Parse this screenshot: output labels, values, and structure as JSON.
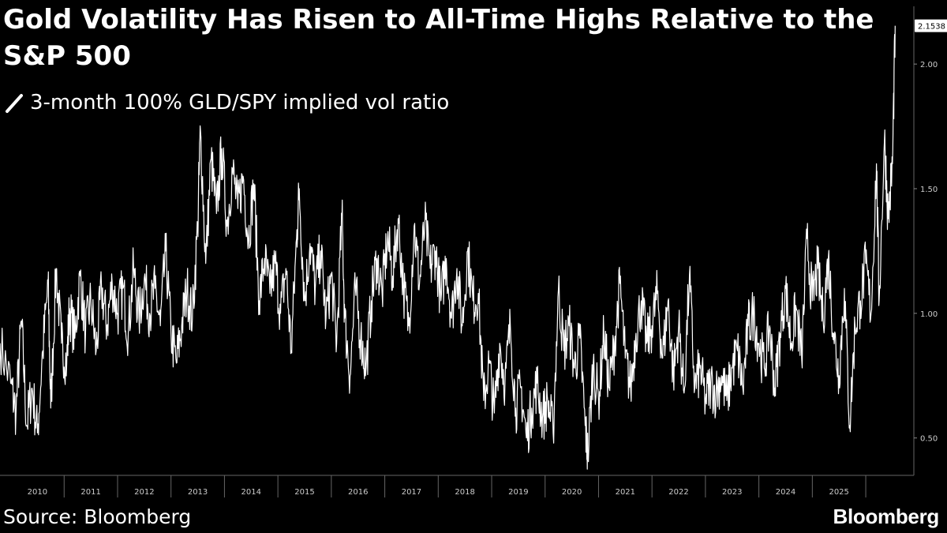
{
  "chart_data": {
    "type": "line",
    "title": "Gold Volatility Has Risen to All-Time Highs Relative to the S&P 500",
    "series": [
      {
        "name": "3-month 100% GLD/SPY implied vol ratio",
        "color": "#ffffff",
        "points": [
          [
            2009.8,
            0.88
          ],
          [
            2010.0,
            0.72
          ],
          [
            2010.1,
            0.6
          ],
          [
            2010.2,
            0.97
          ],
          [
            2010.3,
            0.55
          ],
          [
            2010.4,
            0.7
          ],
          [
            2010.5,
            0.52
          ],
          [
            2010.6,
            0.85
          ],
          [
            2010.7,
            1.12
          ],
          [
            2010.75,
            0.62
          ],
          [
            2010.85,
            1.18
          ],
          [
            2010.95,
            0.88
          ],
          [
            2011.05,
            0.8
          ],
          [
            2011.1,
            1.02
          ],
          [
            2011.2,
            0.9
          ],
          [
            2011.3,
            1.15
          ],
          [
            2011.4,
            0.92
          ],
          [
            2011.5,
            1.05
          ],
          [
            2011.6,
            0.85
          ],
          [
            2011.7,
            1.1
          ],
          [
            2011.8,
            0.95
          ],
          [
            2011.9,
            1.12
          ],
          [
            2012.0,
            1.0
          ],
          [
            2012.1,
            1.1
          ],
          [
            2012.2,
            0.92
          ],
          [
            2012.3,
            1.18
          ],
          [
            2012.4,
            0.98
          ],
          [
            2012.5,
            1.14
          ],
          [
            2012.6,
            1.0
          ],
          [
            2012.7,
            1.1
          ],
          [
            2012.8,
            0.95
          ],
          [
            2012.9,
            1.25
          ],
          [
            2013.0,
            0.92
          ],
          [
            2013.1,
            0.8
          ],
          [
            2013.2,
            0.95
          ],
          [
            2013.3,
            1.1
          ],
          [
            2013.4,
            0.98
          ],
          [
            2013.5,
            1.35
          ],
          [
            2013.55,
            1.74
          ],
          [
            2013.65,
            1.2
          ],
          [
            2013.75,
            1.62
          ],
          [
            2013.85,
            1.4
          ],
          [
            2013.95,
            1.66
          ],
          [
            2014.05,
            1.35
          ],
          [
            2014.15,
            1.58
          ],
          [
            2014.25,
            1.42
          ],
          [
            2014.35,
            1.55
          ],
          [
            2014.45,
            1.3
          ],
          [
            2014.55,
            1.52
          ],
          [
            2014.65,
            1.05
          ],
          [
            2014.75,
            1.22
          ],
          [
            2014.85,
            1.08
          ],
          [
            2014.95,
            1.2
          ],
          [
            2015.05,
            1.0
          ],
          [
            2015.15,
            1.18
          ],
          [
            2015.25,
            0.85
          ],
          [
            2015.35,
            1.3
          ],
          [
            2015.4,
            1.5
          ],
          [
            2015.5,
            1.05
          ],
          [
            2015.6,
            1.28
          ],
          [
            2015.7,
            1.1
          ],
          [
            2015.8,
            1.25
          ],
          [
            2015.9,
            0.98
          ],
          [
            2016.0,
            1.15
          ],
          [
            2016.1,
            0.88
          ],
          [
            2016.2,
            1.4
          ],
          [
            2016.25,
            0.98
          ],
          [
            2016.35,
            0.75
          ],
          [
            2016.45,
            1.1
          ],
          [
            2016.55,
            0.9
          ],
          [
            2016.65,
            0.78
          ],
          [
            2016.75,
            1.05
          ],
          [
            2016.85,
            1.22
          ],
          [
            2016.95,
            1.08
          ],
          [
            2017.05,
            1.3
          ],
          [
            2017.15,
            1.15
          ],
          [
            2017.25,
            1.38
          ],
          [
            2017.35,
            1.1
          ],
          [
            2017.45,
            0.95
          ],
          [
            2017.55,
            1.35
          ],
          [
            2017.65,
            1.12
          ],
          [
            2017.75,
            1.36
          ],
          [
            2017.85,
            1.18
          ],
          [
            2017.95,
            1.25
          ],
          [
            2018.05,
            1.05
          ],
          [
            2018.15,
            1.22
          ],
          [
            2018.25,
            0.98
          ],
          [
            2018.35,
            1.18
          ],
          [
            2018.45,
            0.95
          ],
          [
            2018.55,
            1.25
          ],
          [
            2018.65,
            1.05
          ],
          [
            2018.75,
            1.08
          ],
          [
            2018.85,
            0.65
          ],
          [
            2018.95,
            0.8
          ],
          [
            2019.05,
            0.6
          ],
          [
            2019.15,
            0.88
          ],
          [
            2019.25,
            0.72
          ],
          [
            2019.35,
            0.95
          ],
          [
            2019.45,
            0.62
          ],
          [
            2019.55,
            0.7
          ],
          [
            2019.65,
            0.5
          ],
          [
            2019.75,
            0.62
          ],
          [
            2019.85,
            0.72
          ],
          [
            2019.95,
            0.58
          ],
          [
            2020.05,
            0.65
          ],
          [
            2020.15,
            0.52
          ],
          [
            2020.25,
            1.1
          ],
          [
            2020.35,
            0.85
          ],
          [
            2020.45,
            0.95
          ],
          [
            2020.55,
            0.78
          ],
          [
            2020.65,
            0.9
          ],
          [
            2020.75,
            0.55
          ],
          [
            2020.8,
            0.43
          ],
          [
            2020.9,
            0.8
          ],
          [
            2021.0,
            0.65
          ],
          [
            2021.1,
            0.92
          ],
          [
            2021.2,
            0.7
          ],
          [
            2021.3,
            0.88
          ],
          [
            2021.4,
            1.12
          ],
          [
            2021.5,
            0.82
          ],
          [
            2021.6,
            0.7
          ],
          [
            2021.7,
            0.92
          ],
          [
            2021.8,
            1.05
          ],
          [
            2021.9,
            0.88
          ],
          [
            2022.0,
            0.95
          ],
          [
            2022.1,
            1.08
          ],
          [
            2022.2,
            0.82
          ],
          [
            2022.3,
            1.05
          ],
          [
            2022.4,
            0.75
          ],
          [
            2022.5,
            0.95
          ],
          [
            2022.6,
            0.68
          ],
          [
            2022.7,
            1.15
          ],
          [
            2022.8,
            0.7
          ],
          [
            2022.9,
            0.78
          ],
          [
            2023.0,
            0.65
          ],
          [
            2023.1,
            0.72
          ],
          [
            2023.2,
            0.68
          ],
          [
            2023.3,
            0.75
          ],
          [
            2023.4,
            0.65
          ],
          [
            2023.5,
            0.78
          ],
          [
            2023.6,
            0.85
          ],
          [
            2023.7,
            0.7
          ],
          [
            2023.8,
            0.95
          ],
          [
            2023.9,
            1.0
          ],
          [
            2024.0,
            0.88
          ],
          [
            2024.1,
            0.78
          ],
          [
            2024.2,
            0.95
          ],
          [
            2024.3,
            0.7
          ],
          [
            2024.4,
            0.92
          ],
          [
            2024.5,
            1.1
          ],
          [
            2024.6,
            0.88
          ],
          [
            2024.7,
            1.02
          ],
          [
            2024.8,
            0.82
          ],
          [
            2024.9,
            1.3
          ],
          [
            2025.0,
            1.05
          ],
          [
            2025.1,
            1.18
          ],
          [
            2025.2,
            0.98
          ],
          [
            2025.3,
            1.22
          ],
          [
            2025.4,
            0.92
          ],
          [
            2025.5,
            0.75
          ],
          [
            2025.6,
            1.1
          ],
          [
            2025.7,
            0.55
          ],
          [
            2025.8,
            0.95
          ],
          [
            2025.9,
            1.05
          ],
          [
            2026.0,
            1.2
          ],
          [
            2026.1,
            1.0
          ],
          [
            2026.2,
            1.6
          ],
          [
            2026.25,
            1.05
          ],
          [
            2026.35,
            1.7
          ],
          [
            2026.42,
            1.38
          ],
          [
            2026.5,
            1.6
          ],
          [
            2026.55,
            2.1538
          ]
        ]
      }
    ],
    "last_value_label": "2.1538",
    "xlim": [
      2009.8,
      2026.9
    ],
    "ylim": [
      0.35,
      2.2
    ],
    "y_ticks": [
      {
        "value": 0.5,
        "label": "0.50"
      },
      {
        "value": 1.0,
        "label": "1.00"
      },
      {
        "value": 1.5,
        "label": "1.50"
      },
      {
        "value": 2.0,
        "label": "2.00"
      }
    ],
    "x_ticks": [
      "2010",
      "2011",
      "2012",
      "2013",
      "2014",
      "2015",
      "2016",
      "2017",
      "2018",
      "2019",
      "2020",
      "2021",
      "2022",
      "2023",
      "2024",
      "2025"
    ],
    "grid": false,
    "legend_placement": "top-left"
  },
  "header": {
    "title": "Gold Volatility Has Risen to All-Time Highs Relative to the S&P 500"
  },
  "legend": {
    "label": "3-month 100% GLD/SPY implied vol ratio"
  },
  "footer": {
    "source": "Source: Bloomberg",
    "brand": "Bloomberg"
  }
}
